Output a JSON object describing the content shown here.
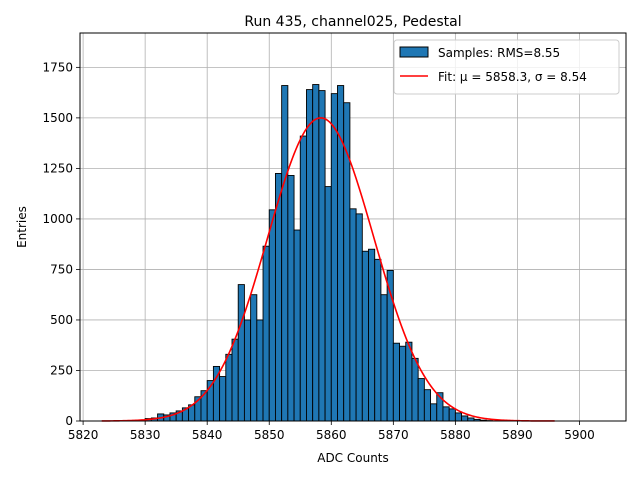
{
  "chart_data": {
    "type": "bar",
    "title": "Run 435, channel025, Pedestal",
    "xlabel": "ADC Counts",
    "ylabel": "Entries",
    "xlim": [
      5819.5,
      5907.5
    ],
    "ylim": [
      0,
      1920
    ],
    "xticks": [
      5820,
      5830,
      5840,
      5850,
      5860,
      5870,
      5880,
      5890,
      5900
    ],
    "yticks": [
      0,
      250,
      500,
      750,
      1000,
      1250,
      1500,
      1750
    ],
    "grid": true,
    "legend_position": "top-right",
    "colors": {
      "bars": "#1f77b4",
      "bar_edge": "#000000",
      "fit": "#ff0000",
      "grid": "#b0b0b0"
    },
    "histogram": {
      "name": "Samples: RMS=8.55",
      "bin_width": 1,
      "bin_start": 5828,
      "counts": [
        3,
        5,
        12,
        15,
        35,
        30,
        40,
        50,
        65,
        80,
        120,
        150,
        200,
        270,
        220,
        330,
        405,
        675,
        500,
        625,
        500,
        865,
        1045,
        1225,
        1660,
        1215,
        945,
        1410,
        1640,
        1665,
        1635,
        1160,
        1620,
        1660,
        1575,
        1050,
        1025,
        840,
        850,
        800,
        625,
        745,
        385,
        370,
        390,
        310,
        210,
        155,
        85,
        140,
        70,
        60,
        40,
        25,
        15,
        8,
        4,
        2
      ]
    },
    "fit": {
      "name": "Fit: μ = 5858.3, σ = 8.54",
      "mu": 5858.3,
      "sigma": 8.54,
      "amplitude": 1500,
      "x_range": [
        5823,
        5896
      ]
    }
  }
}
